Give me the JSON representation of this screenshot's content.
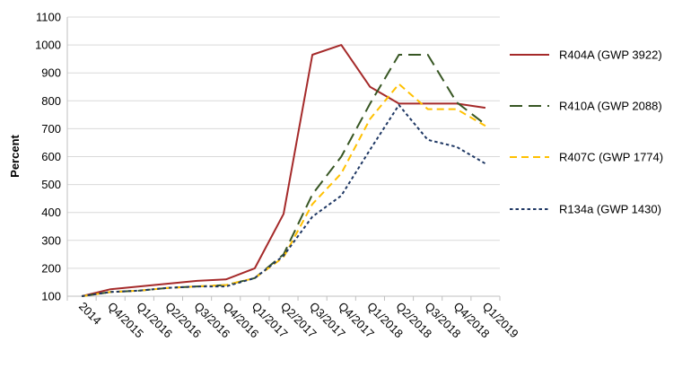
{
  "chart_data": {
    "type": "line",
    "ylabel": "Percent",
    "xlabel": "",
    "ylim": [
      100,
      1100
    ],
    "yticks": [
      100,
      200,
      300,
      400,
      500,
      600,
      700,
      800,
      900,
      1000,
      1100
    ],
    "grid": true,
    "legend_position": "right",
    "categories": [
      "2014",
      "Q4/2015",
      "Q1/2016",
      "Q2/2016",
      "Q3/2016",
      "Q4/2016",
      "Q1/2017",
      "Q2/2017",
      "Q3/2017",
      "Q4/2017",
      "Q1/2018",
      "Q2/2018",
      "Q3/2018",
      "Q4/2018",
      "Q1/2019"
    ],
    "series": [
      {
        "name": "R404A (GWP 3922)",
        "color": "#A52A2A",
        "dash": "solid",
        "values": [
          100,
          125,
          135,
          145,
          155,
          160,
          200,
          395,
          965,
          1000,
          850,
          790,
          790,
          790,
          775
        ]
      },
      {
        "name": "R410A (GWP 2088)",
        "color": "#375623",
        "dash": "long-dash",
        "values": [
          100,
          115,
          120,
          130,
          135,
          140,
          165,
          250,
          465,
          600,
          790,
          965,
          965,
          795,
          715
        ]
      },
      {
        "name": "R407C (GWP 1774)",
        "color": "#FFC000",
        "dash": "dash",
        "values": [
          100,
          115,
          120,
          130,
          135,
          140,
          165,
          240,
          430,
          540,
          735,
          860,
          770,
          770,
          710
        ]
      },
      {
        "name": "R134a (GWP 1430)",
        "color": "#1F3864",
        "dash": "dot",
        "values": [
          100,
          115,
          120,
          130,
          135,
          135,
          165,
          245,
          385,
          460,
          625,
          785,
          660,
          635,
          575
        ]
      }
    ]
  }
}
